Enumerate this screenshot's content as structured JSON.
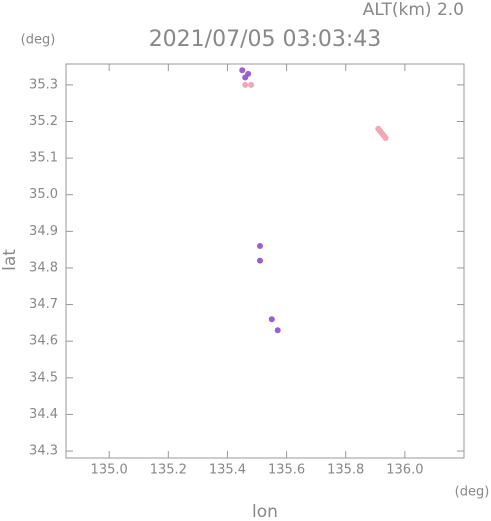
{
  "chart_data": {
    "type": "scatter",
    "title": "2021/07/05 03:03:43",
    "subtitle": "ALT(km) 2.0",
    "x_label": "lon",
    "y_label": "lat",
    "x_unit": "(deg)",
    "y_unit": "(deg)",
    "xlim": [
      134.854,
      136.2
    ],
    "ylim": [
      34.281,
      35.357
    ],
    "xticks": [
      {
        "value": 135.0,
        "label": "135.0"
      },
      135.2,
      135.4,
      135.6,
      135.8,
      {
        "value": 136.0,
        "label": "136.0"
      }
    ],
    "yticks": [
      34.3,
      34.4,
      34.5,
      34.6,
      34.7,
      34.8,
      34.9,
      {
        "value": 35.0,
        "label": "35.0"
      },
      35.1,
      35.2,
      35.3
    ],
    "series": [
      {
        "color": "#f4a6b4",
        "x": [
          135.91,
          135.915,
          135.92,
          135.925,
          135.93,
          135.935,
          135.46,
          135.48
        ],
        "y": [
          35.18,
          35.175,
          35.17,
          35.165,
          35.16,
          35.155,
          35.3,
          35.3
        ]
      },
      {
        "color": "#9a5fd0",
        "x": [
          135.45,
          135.47,
          135.46,
          135.51,
          135.51,
          135.55,
          135.57
        ],
        "y": [
          35.34,
          35.33,
          35.32,
          34.82,
          34.86,
          34.66,
          34.63
        ]
      }
    ]
  }
}
